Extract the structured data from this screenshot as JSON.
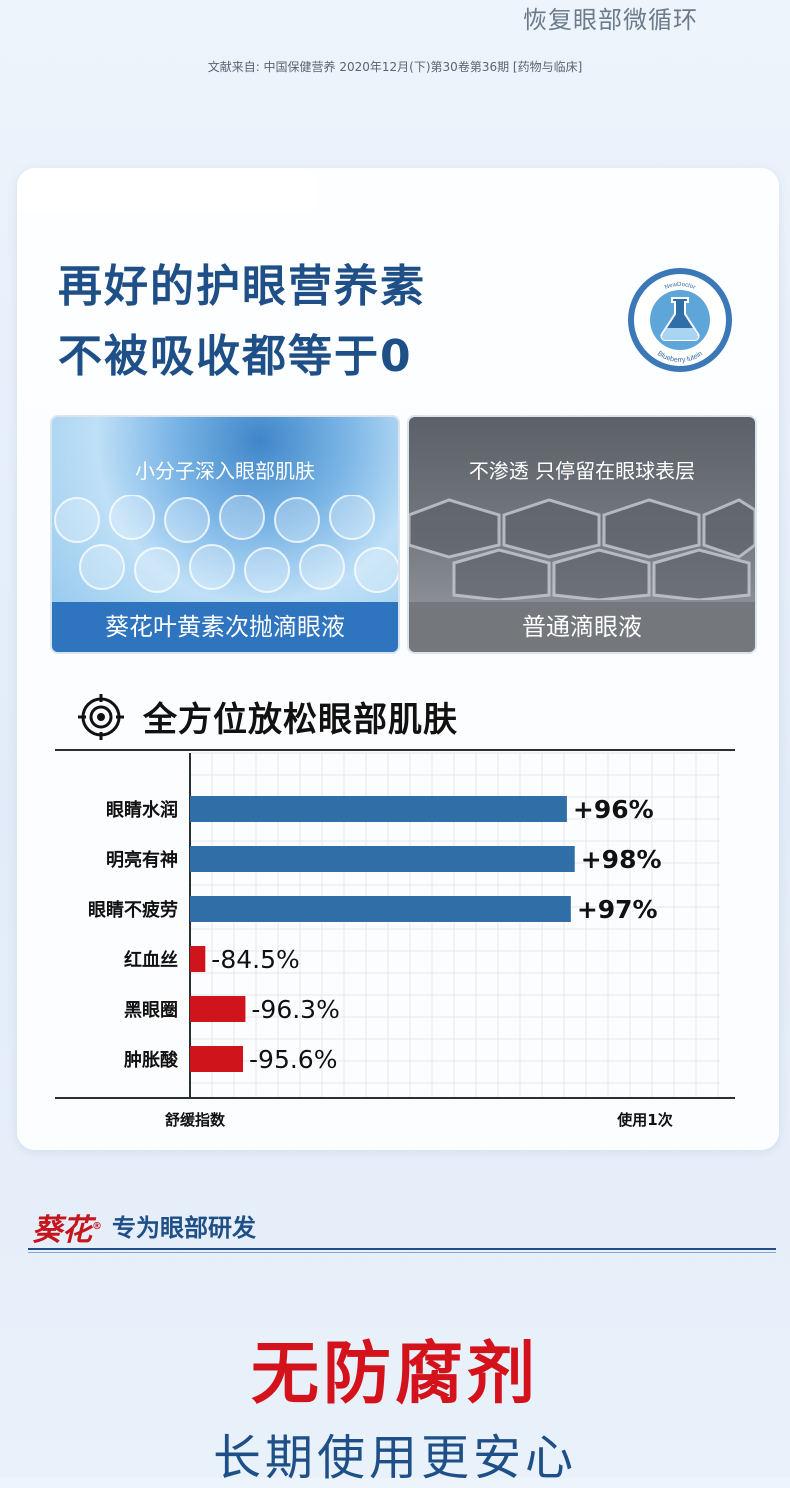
{
  "top": {
    "tagline": "恢复眼部微循环",
    "citation": "文献来自: 中国保健营养 2020年12月(下)第30卷第36期 [药物与临床]"
  },
  "card": {
    "headline_line1": "再好的护眼营养素",
    "headline_line2": "不被吸收都等于0",
    "badge_top_text": "NewDoctor",
    "badge_bottom_text": "Blueberry lutein"
  },
  "comparison": {
    "left": {
      "caption": "小分子深入眼部肌肤",
      "label": "葵花叶黄素次抛滴眼液"
    },
    "right": {
      "caption": "不渗透 只停留在眼球表层",
      "label": "普通滴眼液"
    }
  },
  "section": {
    "title": "全方位放松眼部肌肤"
  },
  "chart_data": {
    "type": "bar",
    "orientation": "horizontal",
    "categories": [
      "眼睛水润",
      "明亮有神",
      "眼睛不疲劳",
      "红血丝",
      "黑眼圈",
      "肿胀酸"
    ],
    "values": [
      96,
      98,
      97,
      -84.5,
      -96.3,
      -95.6
    ],
    "data_labels": [
      "+96%",
      "+98%",
      "+97%",
      "-84.5%",
      "-96.3%",
      "-95.6%"
    ],
    "colors": [
      "#2f6ea6",
      "#2f6ea6",
      "#2f6ea6",
      "#d0141c",
      "#d0141c",
      "#d0141c"
    ],
    "xlabel_left": "舒缓指数",
    "xlabel_right": "使用1次",
    "grid": true
  },
  "brand": {
    "logo": "葵花",
    "logo_mark": "®",
    "tagline": "专为眼部研发"
  },
  "footer": {
    "headline": "无防腐剂",
    "subline": "长期使用更安心"
  },
  "colors": {
    "brand_blue": "#1f4f87",
    "brand_red": "#d3121b",
    "bar_blue": "#2f6ea6",
    "bar_red": "#d0141c"
  }
}
